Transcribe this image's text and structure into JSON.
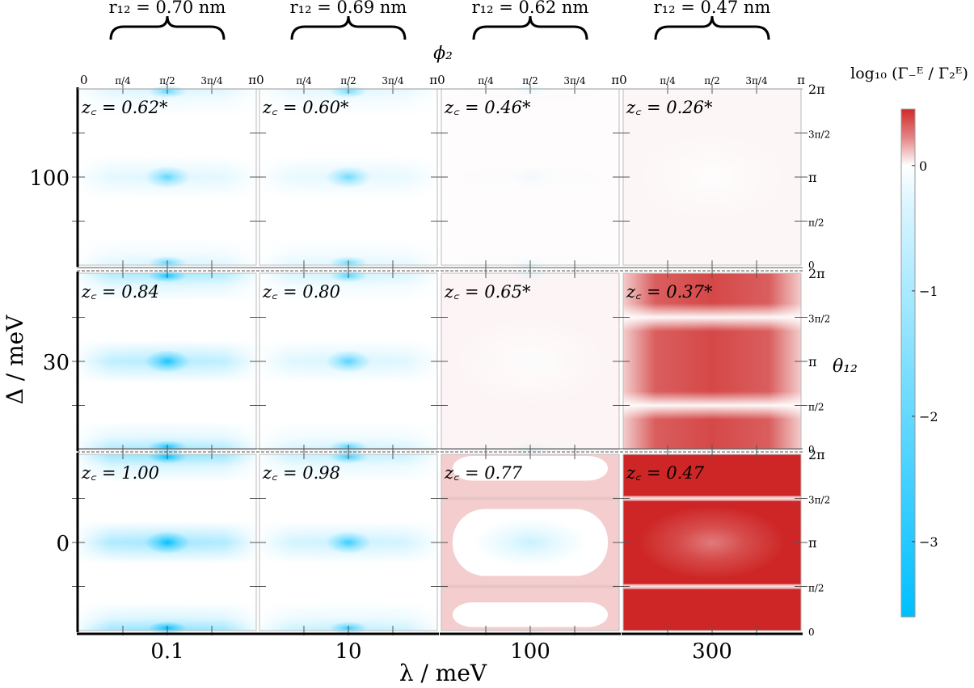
{
  "chart_data": {
    "type": "heatmap",
    "column_headers": [
      "r₁₂ = 0.70 nm",
      "r₁₂ = 0.69 nm",
      "r₁₂ = 0.62 nm",
      "r₁₂ = 0.47 nm"
    ],
    "x_bottom_label": "λ / meV",
    "x_bottom_ticks": [
      "0.1",
      "10",
      "100",
      "300"
    ],
    "y_left_label": "Δ / meV",
    "y_left_ticks": [
      "100",
      "30",
      "0"
    ],
    "x_top_label": "ϕ₂",
    "x_top_ticks": [
      "0",
      "π/4",
      "π/2",
      "3π/4",
      "π"
    ],
    "y_right_label": "θ₁₂",
    "y_right_ticks": [
      "0",
      "π/2",
      "π",
      "3π/2",
      "2π"
    ],
    "colorbar_label": "log₁₀ (Γ₋ᴱ / Γ₂ᴱ)",
    "colorbar_ticks": [
      0,
      -1,
      -2,
      -3
    ],
    "colorbar_range": [
      -3.6,
      0.45
    ],
    "colormap": {
      "low": "#00bfff",
      "mid": "#ffffff",
      "high": "#cc1f1f"
    },
    "panels": [
      [
        {
          "zc": "z꜀ = 0.62*",
          "depth": -0.55,
          "excess": 0.0,
          "band": 0.0
        },
        {
          "zc": "z꜀ = 0.60*",
          "depth": -0.5,
          "excess": 0.0,
          "band": 0.0
        },
        {
          "zc": "z꜀ = 0.46*",
          "depth": -0.25,
          "excess": 0.02,
          "band": 0.0
        },
        {
          "zc": "z꜀ = 0.26*",
          "depth": 0.0,
          "excess": 0.05,
          "band": 0.0
        }
      ],
      [
        {
          "zc": "z꜀ = 0.84",
          "depth": -0.85,
          "excess": 0.0,
          "band": 0.0
        },
        {
          "zc": "z꜀ = 0.80",
          "depth": -0.6,
          "excess": 0.0,
          "band": 0.0
        },
        {
          "zc": "z꜀ = 0.65*",
          "depth": -0.25,
          "excess": 0.06,
          "band": 0.0
        },
        {
          "zc": "z꜀ = 0.37*",
          "depth": 0.0,
          "excess": 0.75,
          "band": 0.0
        }
      ],
      [
        {
          "zc": "z꜀ = 1.00",
          "depth": -0.95,
          "excess": 0.0,
          "band": 0.0
        },
        {
          "zc": "z꜀ = 0.98",
          "depth": -0.7,
          "excess": 0.0,
          "band": 0.0
        },
        {
          "zc": "z꜀ = 0.77",
          "depth": -0.2,
          "excess": 0.25,
          "band": 0.15
        },
        {
          "zc": "z꜀ = 0.47",
          "depth": 0.0,
          "excess": 1.0,
          "band": 0.85
        }
      ]
    ]
  }
}
